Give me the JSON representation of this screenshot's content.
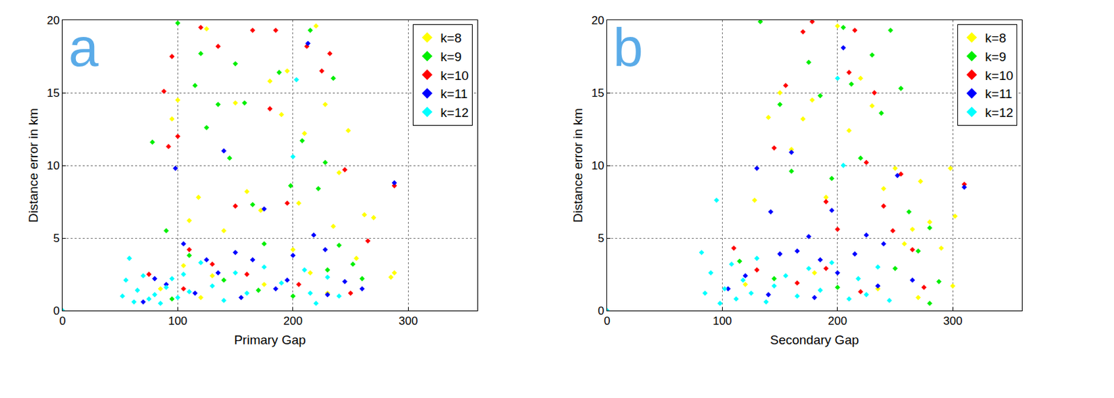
{
  "chart_data": [
    {
      "type": "scatter",
      "panel_label": "a",
      "x_label": "Primary Gap",
      "y_label": "Distance error in km",
      "xlim": [
        0,
        360
      ],
      "xticks": [
        0,
        100,
        200,
        300
      ],
      "ylim": [
        0,
        20
      ],
      "yticks": [
        0,
        5,
        10,
        15,
        20
      ],
      "grid": true,
      "legend": "northeast",
      "marker": "diamond",
      "series": [
        {
          "name": "k=8",
          "color": "#ffff00",
          "x": [
            95,
            100,
            105,
            110,
            118,
            125,
            130,
            140,
            150,
            160,
            172,
            180,
            190,
            195,
            200,
            205,
            210,
            215,
            220,
            228,
            235,
            240,
            248,
            255,
            262,
            270,
            285,
            288,
            85,
            120,
            175,
            230
          ],
          "values": [
            13.2,
            14.5,
            3.1,
            6.2,
            7.8,
            19.4,
            2.4,
            5.5,
            14.3,
            8.2,
            6.9,
            15.8,
            13.5,
            16.5,
            4.2,
            7.4,
            12.2,
            2.6,
            19.6,
            14.2,
            5.8,
            9.5,
            12.4,
            3.6,
            6.6,
            6.4,
            2.3,
            2.6,
            1.5,
            0.9,
            1.8,
            1.2
          ]
        },
        {
          "name": "k=9",
          "color": "#00ee00",
          "x": [
            78,
            90,
            100,
            115,
            120,
            125,
            135,
            145,
            150,
            158,
            165,
            175,
            188,
            198,
            208,
            215,
            222,
            228,
            235,
            240,
            252,
            260,
            110,
            140,
            170,
            200,
            95,
            230
          ],
          "values": [
            11.6,
            5.5,
            19.8,
            15.5,
            17.7,
            12.6,
            14.2,
            10.5,
            17,
            14.3,
            7.3,
            4.6,
            16.4,
            8.6,
            11.7,
            19.3,
            8.4,
            10.2,
            16,
            4.5,
            3.2,
            2.2,
            3.8,
            2.1,
            1.4,
            1.0,
            0.8,
            2.8
          ]
        },
        {
          "name": "k=10",
          "color": "#ff0000",
          "x": [
            88,
            92,
            95,
            100,
            110,
            120,
            135,
            150,
            165,
            180,
            185,
            195,
            212,
            225,
            232,
            245,
            265,
            288,
            75,
            105,
            130,
            160,
            205,
            250
          ],
          "values": [
            15.1,
            11.3,
            17.5,
            12,
            4.2,
            19.5,
            18.2,
            7.2,
            19.3,
            13.9,
            19.3,
            7.4,
            18.2,
            16.5,
            17.7,
            9.7,
            4.8,
            8.6,
            2.5,
            1.5,
            3.2,
            2.5,
            1.8,
            1.2
          ]
        },
        {
          "name": "k=11",
          "color": "#0000ff",
          "x": [
            98,
            105,
            125,
            140,
            150,
            165,
            175,
            185,
            200,
            213,
            218,
            228,
            245,
            260,
            288,
            80,
            115,
            135,
            155,
            195,
            230,
            70,
            90
          ],
          "values": [
            9.8,
            4.6,
            3.5,
            11,
            4,
            3.5,
            7,
            1.5,
            3.8,
            18.4,
            5.2,
            4.2,
            2,
            1.5,
            8.8,
            2.2,
            1.2,
            2.6,
            0.9,
            2.1,
            1.1,
            0.6,
            1.8
          ]
        },
        {
          "name": "k=12",
          "color": "#00ffff",
          "x": [
            0,
            52,
            55,
            58,
            62,
            65,
            70,
            75,
            80,
            85,
            90,
            95,
            100,
            105,
            110,
            120,
            130,
            140,
            150,
            160,
            175,
            190,
            200,
            203,
            210,
            215,
            220,
            230,
            240
          ],
          "values": [
            0,
            1,
            2.1,
            3.6,
            0.6,
            1.4,
            2.4,
            0.8,
            1.1,
            0.5,
            1.6,
            2.2,
            0.9,
            2.5,
            1.3,
            3.3,
            1.7,
            0.7,
            2.6,
            1.2,
            3.0,
            1.9,
            10.6,
            15.9,
            2.8,
            1.2,
            0.5,
            2.3,
            1.0
          ]
        }
      ]
    },
    {
      "type": "scatter",
      "panel_label": "b",
      "x_label": "Secondary Gap",
      "y_label": "Distance error in km",
      "xlim": [
        0,
        360
      ],
      "xticks": [
        0,
        100,
        200,
        300
      ],
      "ylim": [
        0,
        20
      ],
      "yticks": [
        0,
        5,
        10,
        15,
        20
      ],
      "grid": true,
      "legend": "northeast",
      "marker": "diamond",
      "series": [
        {
          "name": "k=8",
          "color": "#ffff00",
          "x": [
            128,
            140,
            150,
            160,
            170,
            178,
            190,
            200,
            210,
            220,
            230,
            240,
            250,
            258,
            265,
            272,
            280,
            290,
            298,
            302,
            300,
            120,
            180,
            235,
            270
          ],
          "values": [
            7.6,
            13.3,
            15,
            11.1,
            13.2,
            14.5,
            7.8,
            19.6,
            12.4,
            16,
            14.1,
            8.4,
            9.8,
            4.6,
            5.6,
            8.9,
            6.1,
            4.3,
            9.8,
            6.5,
            1.7,
            1.8,
            2.6,
            1.5,
            0.9
          ]
        },
        {
          "name": "k=9",
          "color": "#00ee00",
          "x": [
            133,
            150,
            160,
            175,
            185,
            195,
            205,
            212,
            220,
            230,
            238,
            246,
            255,
            262,
            270,
            280,
            288,
            115,
            145,
            200,
            250,
            280
          ],
          "values": [
            19.9,
            14.2,
            9.6,
            17.1,
            14.8,
            9.1,
            19.5,
            15.6,
            10.5,
            17.6,
            13.6,
            19.3,
            15.3,
            6.8,
            4.1,
            5.7,
            2,
            3.4,
            2.2,
            1.6,
            2.9,
            0.5
          ]
        },
        {
          "name": "k=10",
          "color": "#ff0000",
          "x": [
            145,
            155,
            170,
            178,
            190,
            200,
            210,
            215,
            225,
            232,
            240,
            248,
            255,
            265,
            310,
            110,
            130,
            165,
            190,
            220,
            275
          ],
          "values": [
            11.2,
            15.5,
            19.2,
            19.9,
            7.5,
            5.6,
            16.4,
            19.3,
            10.2,
            15,
            7.2,
            5.5,
            9.4,
            4.2,
            8.7,
            4.3,
            2.8,
            1.9,
            2.9,
            1.3,
            1.6
          ]
        },
        {
          "name": "k=11",
          "color": "#0000ff",
          "x": [
            130,
            142,
            150,
            160,
            165,
            175,
            185,
            195,
            205,
            215,
            225,
            240,
            252,
            265,
            310,
            105,
            120,
            140,
            180,
            200,
            235
          ],
          "values": [
            9.8,
            6.8,
            3.9,
            10.9,
            4.1,
            5.1,
            3.5,
            6.9,
            18.1,
            3.9,
            5.2,
            4.6,
            9.3,
            2.1,
            8.5,
            1.5,
            2.4,
            1.1,
            0.9,
            2.6,
            1.7
          ]
        },
        {
          "name": "k=12",
          "color": "#00ffff",
          "x": [
            0,
            82,
            85,
            90,
            95,
            98,
            102,
            108,
            112,
            118,
            125,
            130,
            138,
            145,
            155,
            165,
            175,
            185,
            195,
            200,
            205,
            210,
            218,
            225,
            235,
            245
          ],
          "values": [
            0,
            4.0,
            1.2,
            2.6,
            7.6,
            0.5,
            1.5,
            3.2,
            0.8,
            2.1,
            1.2,
            3.6,
            0.6,
            1.7,
            2.4,
            1.0,
            2.9,
            1.4,
            3.3,
            16,
            10,
            0.8,
            2.2,
            1.1,
            3.0,
            0.7
          ]
        }
      ]
    }
  ]
}
